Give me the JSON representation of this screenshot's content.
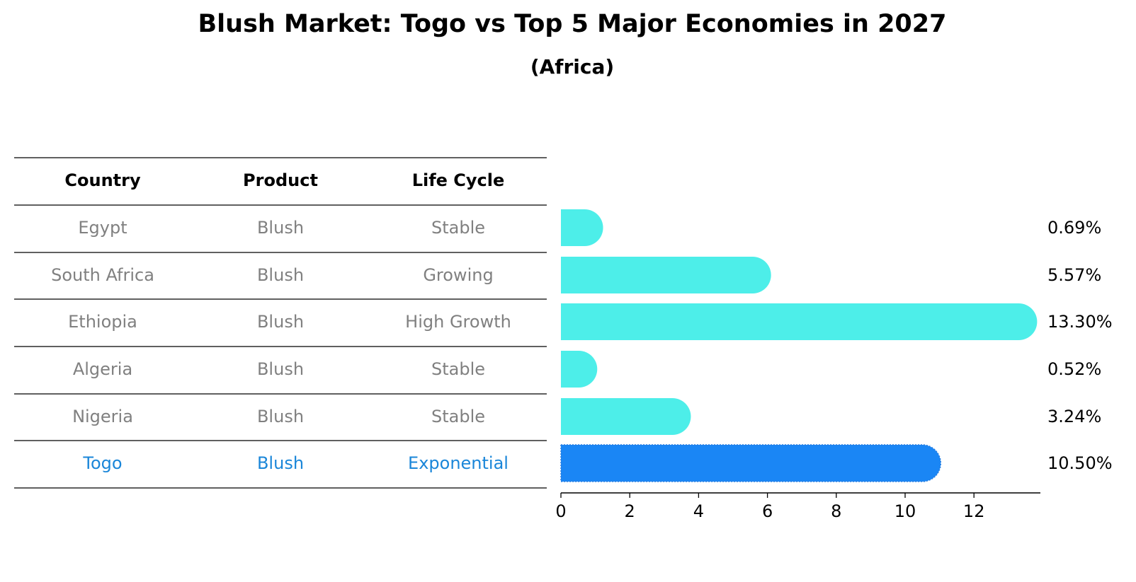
{
  "title": "Blush Market: Togo vs Top 5 Major Economies in 2027",
  "subtitle": "(Africa)",
  "colors": {
    "bar": "#4deee9",
    "highlight_bar": "#1a86f5",
    "row_text": "#808080",
    "highlight_text": "#1a86d9"
  },
  "table": {
    "headers": [
      "Country",
      "Product",
      "Life Cycle"
    ],
    "rows": [
      [
        "Egypt",
        "Blush",
        "Stable"
      ],
      [
        "South Africa",
        "Blush",
        "Growing"
      ],
      [
        "Ethiopia",
        "Blush",
        "High Growth"
      ],
      [
        "Algeria",
        "Blush",
        "Stable"
      ],
      [
        "Nigeria",
        "Blush",
        "Stable"
      ],
      [
        "Togo",
        "Blush",
        "Exponential"
      ]
    ],
    "highlight_row": 5
  },
  "chart_data": {
    "type": "bar",
    "orientation": "horizontal",
    "categories": [
      "Egypt",
      "South Africa",
      "Ethiopia",
      "Algeria",
      "Nigeria",
      "Togo"
    ],
    "values": [
      0.69,
      5.57,
      13.3,
      0.52,
      3.24,
      10.5
    ],
    "value_labels": [
      "0.69%",
      "5.57%",
      "13.30%",
      "0.52%",
      "3.24%",
      "10.50%"
    ],
    "highlight": "Togo",
    "xticks": [
      0,
      2,
      4,
      6,
      8,
      10,
      12
    ],
    "xlim": [
      0,
      14
    ],
    "grid": false
  }
}
